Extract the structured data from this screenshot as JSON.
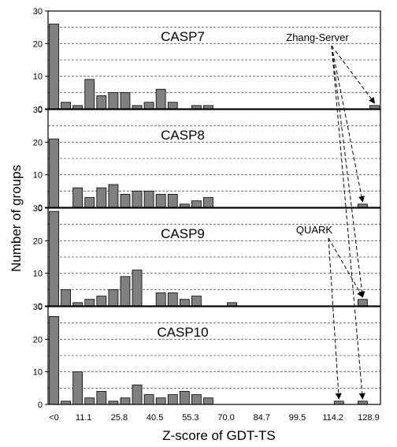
{
  "chart_data": {
    "type": "bar",
    "xlabel": "Z-score of GDT-TS",
    "ylabel": "Number of groups",
    "ylim": [
      0,
      30
    ],
    "yticks": [
      0,
      10,
      20,
      30
    ],
    "grid": "horizontal-dashed",
    "bin_count": 28,
    "x_tick_labels": [
      {
        "bin": 0,
        "label": "<0"
      },
      {
        "bin": 2.5,
        "label": "11.1"
      },
      {
        "bin": 5.5,
        "label": "25.8"
      },
      {
        "bin": 8.5,
        "label": "40.5"
      },
      {
        "bin": 11.5,
        "label": "55.3"
      },
      {
        "bin": 14.5,
        "label": "70.0"
      },
      {
        "bin": 17.5,
        "label": "84.7"
      },
      {
        "bin": 20.5,
        "label": "99.5"
      },
      {
        "bin": 23.5,
        "label": "114.2"
      },
      {
        "bin": 26.5,
        "label": "128.9"
      }
    ],
    "panels": [
      {
        "name": "CASP7",
        "values": [
          26,
          2,
          1,
          9,
          4,
          5,
          5,
          1,
          2,
          6,
          2,
          0,
          1,
          1,
          0,
          0,
          0,
          0,
          0,
          0,
          0,
          0,
          0,
          0,
          0,
          0,
          0,
          1
        ]
      },
      {
        "name": "CASP8",
        "values": [
          21,
          0,
          6,
          3,
          6,
          7,
          4,
          5,
          5,
          4,
          4,
          1,
          2,
          3,
          0,
          0,
          0,
          0,
          0,
          0,
          0,
          0,
          0,
          0,
          0,
          0,
          1,
          0
        ]
      },
      {
        "name": "CASP9",
        "values": [
          29,
          5,
          1,
          2,
          3,
          5,
          9,
          11,
          0,
          4,
          4,
          2,
          3,
          0,
          0,
          1,
          0,
          0,
          0,
          0,
          0,
          0,
          0,
          0,
          0,
          0,
          2,
          0
        ]
      },
      {
        "name": "CASP10",
        "values": [
          27,
          1,
          10,
          2,
          4,
          1,
          2,
          6,
          3,
          2,
          3,
          4,
          3,
          2,
          0,
          0,
          0,
          0,
          0,
          0,
          0,
          0,
          0,
          0,
          1,
          0,
          1,
          0
        ]
      }
    ],
    "annotations": [
      {
        "text": "Zhang-Server",
        "targets": [
          {
            "panel": 0,
            "bin": 27
          },
          {
            "panel": 1,
            "bin": 26
          },
          {
            "panel": 2,
            "bin": 26
          },
          {
            "panel": 3,
            "bin": 26
          }
        ]
      },
      {
        "text": "QUARK",
        "targets": [
          {
            "panel": 2,
            "bin": 26
          },
          {
            "panel": 3,
            "bin": 24
          }
        ]
      }
    ]
  }
}
